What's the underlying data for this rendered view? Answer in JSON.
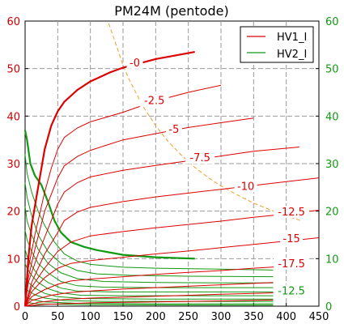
{
  "chart_data": {
    "type": "line",
    "title": "PM24M (pentode)",
    "xlim": [
      0,
      450
    ],
    "ylim": [
      0,
      60
    ],
    "x_ticks": [
      0,
      50,
      100,
      150,
      200,
      250,
      300,
      350,
      400,
      450
    ],
    "y_ticks": [
      0,
      10,
      20,
      30,
      40,
      50,
      60
    ],
    "grid": true,
    "legend": {
      "placement": "top-right",
      "entries": [
        {
          "label": "HV1_I",
          "color": "#dd0000"
        },
        {
          "label": "HV2_I",
          "color": "#119911"
        }
      ]
    },
    "colors": {
      "hv1": "#dd0000",
      "hv2": "#119911",
      "dissipation": "#f0a030",
      "axis_left": "#cc0000",
      "axis_right": "#119911"
    },
    "hv1_curves": [
      {
        "label": "-0",
        "bold": true,
        "points": [
          [
            0,
            0
          ],
          [
            5,
            10
          ],
          [
            10,
            17
          ],
          [
            20,
            25
          ],
          [
            30,
            33
          ],
          [
            40,
            38
          ],
          [
            50,
            41
          ],
          [
            60,
            43
          ],
          [
            80,
            45.5
          ],
          [
            100,
            47.3
          ],
          [
            130,
            49.2
          ],
          [
            150,
            50.2
          ],
          [
            200,
            52
          ],
          [
            260,
            53.5
          ]
        ]
      },
      {
        "label": "-2.5",
        "points": [
          [
            0,
            0
          ],
          [
            5,
            8
          ],
          [
            15,
            15
          ],
          [
            30,
            24
          ],
          [
            40,
            29
          ],
          [
            50,
            33
          ],
          [
            60,
            35.5
          ],
          [
            80,
            37.5
          ],
          [
            100,
            38.8
          ],
          [
            150,
            40.8
          ],
          [
            200,
            43.2
          ],
          [
            250,
            45
          ],
          [
            300,
            46.5
          ]
        ]
      },
      {
        "label": "-5",
        "points": [
          [
            0,
            0
          ],
          [
            5,
            6
          ],
          [
            15,
            12
          ],
          [
            30,
            20
          ],
          [
            50,
            27
          ],
          [
            60,
            29.5
          ],
          [
            80,
            31.5
          ],
          [
            100,
            32.8
          ],
          [
            150,
            35
          ],
          [
            200,
            36.3
          ],
          [
            250,
            37.6
          ],
          [
            300,
            38.6
          ],
          [
            350,
            39.6
          ]
        ]
      },
      {
        "label": "-7.5",
        "points": [
          [
            0,
            0
          ],
          [
            5,
            5
          ],
          [
            20,
            11
          ],
          [
            40,
            18
          ],
          [
            50,
            21.5
          ],
          [
            60,
            24
          ],
          [
            80,
            26
          ],
          [
            100,
            27.2
          ],
          [
            150,
            28.6
          ],
          [
            200,
            29.6
          ],
          [
            250,
            30.6
          ],
          [
            300,
            31.6
          ],
          [
            350,
            32.6
          ],
          [
            420,
            33.5
          ]
        ]
      },
      {
        "label": "-10",
        "points": [
          [
            0,
            0
          ],
          [
            10,
            5
          ],
          [
            30,
            11
          ],
          [
            50,
            15.5
          ],
          [
            60,
            18
          ],
          [
            80,
            19.8
          ],
          [
            100,
            20.8
          ],
          [
            150,
            22
          ],
          [
            200,
            23
          ],
          [
            250,
            23.8
          ],
          [
            300,
            24.6
          ],
          [
            350,
            25.4
          ],
          [
            400,
            26.2
          ],
          [
            450,
            27
          ]
        ]
      },
      {
        "label": "-12.5",
        "points": [
          [
            0,
            0
          ],
          [
            10,
            4
          ],
          [
            30,
            8
          ],
          [
            50,
            11.5
          ],
          [
            70,
            13.5
          ],
          [
            100,
            14.8
          ],
          [
            150,
            15.7
          ],
          [
            200,
            16.5
          ],
          [
            250,
            17.2
          ],
          [
            300,
            17.9
          ],
          [
            350,
            18.7
          ],
          [
            400,
            19.4
          ],
          [
            450,
            20.2
          ]
        ]
      },
      {
        "label": "-15",
        "points": [
          [
            0,
            0
          ],
          [
            10,
            3
          ],
          [
            30,
            6
          ],
          [
            50,
            8
          ],
          [
            70,
            9
          ],
          [
            100,
            9.6
          ],
          [
            150,
            10.3
          ],
          [
            200,
            11
          ],
          [
            250,
            11.6
          ],
          [
            300,
            12.3
          ],
          [
            350,
            13
          ],
          [
            400,
            13.7
          ],
          [
            450,
            14.4
          ]
        ]
      },
      {
        "label": "-17.5",
        "points": [
          [
            0,
            0
          ],
          [
            10,
            2
          ],
          [
            30,
            3.5
          ],
          [
            50,
            4.6
          ],
          [
            70,
            5.3
          ],
          [
            100,
            5.7
          ],
          [
            150,
            6.2
          ],
          [
            200,
            6.7
          ],
          [
            250,
            7.1
          ],
          [
            300,
            7.5
          ],
          [
            350,
            8
          ],
          [
            400,
            8.4
          ]
        ]
      },
      {
        "label": "",
        "points": [
          [
            0,
            0
          ],
          [
            10,
            1.2
          ],
          [
            40,
            2.3
          ],
          [
            70,
            2.9
          ],
          [
            100,
            3.2
          ],
          [
            150,
            3.6
          ],
          [
            200,
            3.9
          ],
          [
            300,
            4.5
          ],
          [
            380,
            5
          ]
        ]
      },
      {
        "label": "",
        "points": [
          [
            0,
            0
          ],
          [
            20,
            0.8
          ],
          [
            60,
            1.4
          ],
          [
            100,
            1.7
          ],
          [
            200,
            2.1
          ],
          [
            300,
            2.5
          ],
          [
            380,
            2.8
          ]
        ]
      },
      {
        "label": "",
        "points": [
          [
            0,
            0
          ],
          [
            30,
            0.4
          ],
          [
            100,
            0.7
          ],
          [
            200,
            0.9
          ],
          [
            300,
            1.1
          ],
          [
            380,
            1.3
          ]
        ]
      }
    ],
    "hv1_label_values": [
      {
        "text": "-0",
        "x": 168,
        "y": 51
      },
      {
        "text": "-2.5",
        "x": 198,
        "y": 43
      },
      {
        "text": "-5",
        "x": 228,
        "y": 37
      },
      {
        "text": "-7.5",
        "x": 268,
        "y": 31
      },
      {
        "text": "-10",
        "x": 338,
        "y": 25
      },
      {
        "text": "-12.5",
        "x": 408,
        "y": 19.6
      },
      {
        "text": "-15",
        "x": 408,
        "y": 14
      },
      {
        "text": "-17.5",
        "x": 408,
        "y": 8.7
      }
    ],
    "hv2_curves": [
      {
        "label": "",
        "bold": true,
        "points": [
          [
            0,
            37
          ],
          [
            3,
            35
          ],
          [
            8,
            30
          ],
          [
            15,
            27.5
          ],
          [
            25,
            25.5
          ],
          [
            35,
            22
          ],
          [
            45,
            18
          ],
          [
            55,
            15.5
          ],
          [
            70,
            13.5
          ],
          [
            90,
            12.5
          ],
          [
            110,
            11.8
          ],
          [
            150,
            10.8
          ],
          [
            200,
            10.3
          ],
          [
            260,
            10
          ]
        ]
      },
      {
        "label": "",
        "points": [
          [
            0,
            32
          ],
          [
            3,
            28
          ],
          [
            10,
            24
          ],
          [
            20,
            20
          ],
          [
            30,
            17
          ],
          [
            45,
            13.5
          ],
          [
            60,
            11
          ],
          [
            80,
            9.5
          ],
          [
            100,
            8.8
          ],
          [
            150,
            8.2
          ],
          [
            200,
            8
          ],
          [
            300,
            7.8
          ],
          [
            380,
            7.6
          ]
        ]
      },
      {
        "label": "",
        "points": [
          [
            0,
            26
          ],
          [
            3,
            23
          ],
          [
            10,
            19
          ],
          [
            20,
            15
          ],
          [
            35,
            11.5
          ],
          [
            55,
            9
          ],
          [
            80,
            7.5
          ],
          [
            110,
            6.8
          ],
          [
            160,
            6.5
          ],
          [
            250,
            6.3
          ],
          [
            380,
            6.2
          ]
        ]
      },
      {
        "label": "",
        "points": [
          [
            0,
            21
          ],
          [
            3,
            18
          ],
          [
            10,
            15
          ],
          [
            20,
            12
          ],
          [
            35,
            9
          ],
          [
            55,
            7
          ],
          [
            80,
            5.8
          ],
          [
            120,
            5.2
          ],
          [
            200,
            5
          ],
          [
            300,
            4.9
          ],
          [
            380,
            4.9
          ]
        ]
      },
      {
        "label": "",
        "points": [
          [
            0,
            16
          ],
          [
            3,
            14
          ],
          [
            10,
            11.5
          ],
          [
            20,
            9
          ],
          [
            35,
            7
          ],
          [
            55,
            5.2
          ],
          [
            80,
            4.3
          ],
          [
            120,
            4
          ],
          [
            200,
            3.9
          ],
          [
            380,
            3.9
          ]
        ]
      },
      {
        "label": "",
        "points": [
          [
            0,
            12
          ],
          [
            3,
            10.5
          ],
          [
            10,
            8.5
          ],
          [
            20,
            6.5
          ],
          [
            35,
            5
          ],
          [
            55,
            3.8
          ],
          [
            80,
            3.2
          ],
          [
            130,
            3
          ],
          [
            250,
            3
          ],
          [
            380,
            3
          ]
        ]
      },
      {
        "label": "",
        "points": [
          [
            0,
            9
          ],
          [
            3,
            8
          ],
          [
            10,
            6.5
          ],
          [
            20,
            5
          ],
          [
            35,
            3.7
          ],
          [
            55,
            2.8
          ],
          [
            85,
            2.3
          ],
          [
            150,
            2.2
          ],
          [
            380,
            2.2
          ]
        ]
      },
      {
        "label": "",
        "points": [
          [
            0,
            6
          ],
          [
            5,
            5
          ],
          [
            15,
            3.8
          ],
          [
            30,
            2.7
          ],
          [
            50,
            2
          ],
          [
            90,
            1.6
          ],
          [
            200,
            1.5
          ],
          [
            380,
            1.5
          ]
        ]
      },
      {
        "label": "",
        "points": [
          [
            0,
            4
          ],
          [
            5,
            3.2
          ],
          [
            15,
            2.4
          ],
          [
            30,
            1.7
          ],
          [
            60,
            1.2
          ],
          [
            120,
            1
          ],
          [
            380,
            1
          ]
        ]
      },
      {
        "label": "",
        "points": [
          [
            0,
            2
          ],
          [
            10,
            1.4
          ],
          [
            30,
            0.9
          ],
          [
            80,
            0.6
          ],
          [
            200,
            0.5
          ],
          [
            380,
            0.5
          ]
        ]
      },
      {
        "label": "",
        "points": [
          [
            0,
            0.8
          ],
          [
            20,
            0.5
          ],
          [
            100,
            0.3
          ],
          [
            380,
            0.2
          ]
        ]
      }
    ],
    "hv2_label_values": [
      {
        "text": "-12.5",
        "x": 408,
        "y": 3
      }
    ],
    "dissipation_curve": {
      "style": "dashed",
      "points": [
        [
          128,
          59.5
        ],
        [
          140,
          54.8
        ],
        [
          150,
          50.7
        ],
        [
          160,
          47.5
        ],
        [
          180,
          42.2
        ],
        [
          200,
          38
        ],
        [
          220,
          34.5
        ],
        [
          240,
          31.7
        ],
        [
          260,
          29.2
        ],
        [
          280,
          27.1
        ],
        [
          300,
          25.3
        ],
        [
          325,
          23.4
        ],
        [
          350,
          21.7
        ],
        [
          375,
          20.3
        ],
        [
          400,
          19
        ],
        [
          425,
          17.9
        ]
      ]
    }
  }
}
